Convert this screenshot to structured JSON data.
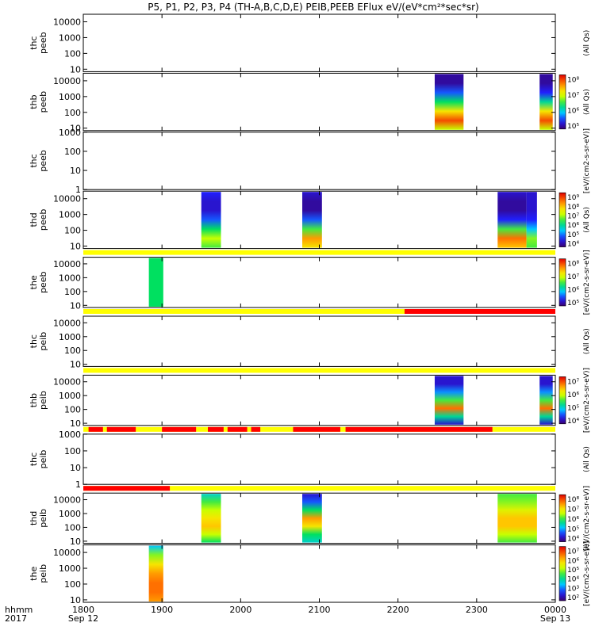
{
  "title": "P5, P1, P2, P3, P4 (TH-A,B,C,D,E) PEIB,PEEB EFlux eV/(eV*cm²*sec*sr)",
  "time_axis": {
    "label_top": "hhmm",
    "label_bottom": "2017",
    "ticks": [
      {
        "t": 1800,
        "label": "1800",
        "sub": "Sep 12"
      },
      {
        "t": 1900,
        "label": "1900",
        "sub": ""
      },
      {
        "t": 2000,
        "label": "2000",
        "sub": ""
      },
      {
        "t": 2100,
        "label": "2100",
        "sub": ""
      },
      {
        "t": 2200,
        "label": "2200",
        "sub": ""
      },
      {
        "t": 2300,
        "label": "2300",
        "sub": ""
      },
      {
        "t": 2400,
        "label": "0000",
        "sub": "Sep 13"
      }
    ],
    "range_minutes": [
      0,
      360
    ]
  },
  "chart_data": {
    "type": "heatmap",
    "x_unit": "minutes since 18:00 UT, Sep 12 2017",
    "panels": [
      {
        "id": "thc-peeb",
        "ylabel": [
          "thc",
          "peeb"
        ],
        "ylim": [
          7,
          30000
        ],
        "yticks": [
          "10",
          "100",
          "1000",
          "10000"
        ],
        "colorbar": null,
        "side_label": "(All Qs)",
        "blocks": [],
        "flag_bar": null
      },
      {
        "id": "thb-peeb",
        "ylabel": [
          "thb",
          "peeb"
        ],
        "ylim": [
          7,
          30000
        ],
        "yticks": [
          "10",
          "100",
          "1000",
          "10000"
        ],
        "colorbar": {
          "ticks": [
            "10⁸",
            "10⁷",
            "10⁶",
            "10⁵"
          ]
        },
        "side_label": "(All Qs)",
        "flag_bar": null,
        "blocks": [
          {
            "x0": 268,
            "x1": 290,
            "profile": [
              0.05,
              0.05,
              0.2,
              0.45,
              0.7,
              0.9,
              0.6
            ]
          },
          {
            "x0": 348,
            "x1": 358,
            "profile": [
              0.05,
              0.05,
              0.15,
              0.4,
              0.7,
              0.9,
              0.6
            ]
          }
        ]
      },
      {
        "id": "thc-peeb2",
        "ylabel": [
          "thc",
          "peeb"
        ],
        "ylim": [
          1,
          1000
        ],
        "yticks": [
          "1",
          "10",
          "100",
          "1000"
        ],
        "colorbar": null,
        "side_label": "[eV/(cm2-s-sr-eV)]",
        "blocks": [],
        "flag_bar": null
      },
      {
        "id": "thd-peeb",
        "ylabel": [
          "thd",
          "peeb"
        ],
        "ylim": [
          7,
          30000
        ],
        "yticks": [
          "10",
          "100",
          "1000",
          "10000"
        ],
        "colorbar": {
          "ticks": [
            "10⁹",
            "10⁸",
            "10⁷",
            "10⁶",
            "10⁵",
            "10⁴"
          ]
        },
        "side_label": "(All Qs)",
        "flag_bar": null,
        "blocks": [
          {
            "x0": 90,
            "x1": 105,
            "profile": [
              0.15,
              0.1,
              0.1,
              0.2,
              0.45,
              0.6,
              0.5
            ]
          },
          {
            "x0": 167,
            "x1": 182,
            "profile": [
              0.1,
              0.05,
              0.05,
              0.2,
              0.5,
              0.8,
              0.7
            ]
          },
          {
            "x0": 316,
            "x1": 338,
            "profile": [
              0.1,
              0.05,
              0.05,
              0.15,
              0.5,
              0.85,
              0.75
            ]
          },
          {
            "x0": 338,
            "x1": 346,
            "profile": [
              0.1,
              0.1,
              0.1,
              0.15,
              0.3,
              0.55,
              0.5
            ]
          }
        ]
      },
      {
        "id": "the-peeb",
        "ylabel": [
          "the",
          "peeb"
        ],
        "ylim": [
          7,
          30000
        ],
        "yticks": [
          "10",
          "100",
          "1000",
          "10000"
        ],
        "colorbar": {
          "ticks": [
            "10⁸",
            "10⁷",
            "10⁶",
            "10⁵"
          ]
        },
        "side_label": "[eV/(cm2-s-sr-eV)]",
        "flag_bar": [
          "yellow"
        ],
        "blocks": [
          {
            "x0": 50,
            "x1": 61,
            "profile": [
              0.45,
              0.45,
              0.45,
              0.45,
              0.45,
              0.45,
              0.45
            ]
          }
        ]
      },
      {
        "id": "thc-peib",
        "ylabel": [
          "thc",
          "peib"
        ],
        "ylim": [
          7,
          30000
        ],
        "yticks": [
          "10",
          "100",
          "1000",
          "10000"
        ],
        "colorbar": null,
        "side_label": "(All Qs)",
        "blocks": [],
        "flag_bar": [
          "yellow",
          "red-from-245"
        ]
      },
      {
        "id": "thb-peib",
        "ylabel": [
          "thb",
          "peib"
        ],
        "ylim": [
          7,
          30000
        ],
        "yticks": [
          "10",
          "100",
          "1000",
          "10000"
        ],
        "colorbar": {
          "ticks": [
            "10⁷",
            "10⁶",
            "10⁵",
            "10⁴"
          ]
        },
        "side_label": "[eV/(cm2-s-sr-eV)]",
        "flag_bar": [
          "yellow"
        ],
        "blocks": [
          {
            "x0": 268,
            "x1": 290,
            "profile": [
              0.1,
              0.1,
              0.25,
              0.5,
              0.85,
              0.4,
              0.1
            ]
          },
          {
            "x0": 348,
            "x1": 358,
            "profile": [
              0.1,
              0.1,
              0.25,
              0.5,
              0.85,
              0.4,
              0.1
            ]
          }
        ]
      },
      {
        "id": "thc-peib2",
        "ylabel": [
          "thc",
          "peib"
        ],
        "ylim": [
          1,
          1000
        ],
        "yticks": [
          "1",
          "10",
          "100",
          "1000"
        ],
        "colorbar": null,
        "side_label": "(All Qs)",
        "blocks": [],
        "flag_bar": [
          "yellow",
          "red-segments"
        ]
      },
      {
        "id": "thd-peib",
        "ylabel": [
          "thd",
          "peib"
        ],
        "ylim": [
          7,
          30000
        ],
        "yticks": [
          "10",
          "100",
          "1000",
          "10000"
        ],
        "colorbar": {
          "ticks": [
            "10⁸",
            "10⁷",
            "10⁶",
            "10⁵",
            "10⁴"
          ]
        },
        "side_label": "[eV/(cm2-s-sr-eV)]",
        "flag_bar": [
          "yellow",
          "red-until-66"
        ],
        "blocks": [
          {
            "x0": 90,
            "x1": 105,
            "profile": [
              0.35,
              0.5,
              0.6,
              0.7,
              0.75,
              0.6,
              0.45
            ]
          },
          {
            "x0": 167,
            "x1": 182,
            "profile": [
              0.1,
              0.2,
              0.45,
              0.8,
              0.7,
              0.45,
              0.35
            ]
          },
          {
            "x0": 316,
            "x1": 346,
            "profile": [
              0.5,
              0.55,
              0.65,
              0.75,
              0.75,
              0.6,
              0.5
            ]
          }
        ]
      },
      {
        "id": "the-peib",
        "ylabel": [
          "the",
          "peib"
        ],
        "ylim": [
          7,
          30000
        ],
        "yticks": [
          "10",
          "100",
          "1000",
          "10000"
        ],
        "colorbar": {
          "ticks": [
            "10⁷",
            "10⁶",
            "10⁵",
            "10⁴",
            "10³",
            "10²"
          ]
        },
        "side_label": "[eV/(cm2-s-sr-eV)]",
        "flag_bar": null,
        "blocks": [
          {
            "x0": 50,
            "x1": 61,
            "profile": [
              0.3,
              0.55,
              0.7,
              0.8,
              0.85,
              0.85,
              0.8
            ]
          }
        ]
      }
    ]
  }
}
